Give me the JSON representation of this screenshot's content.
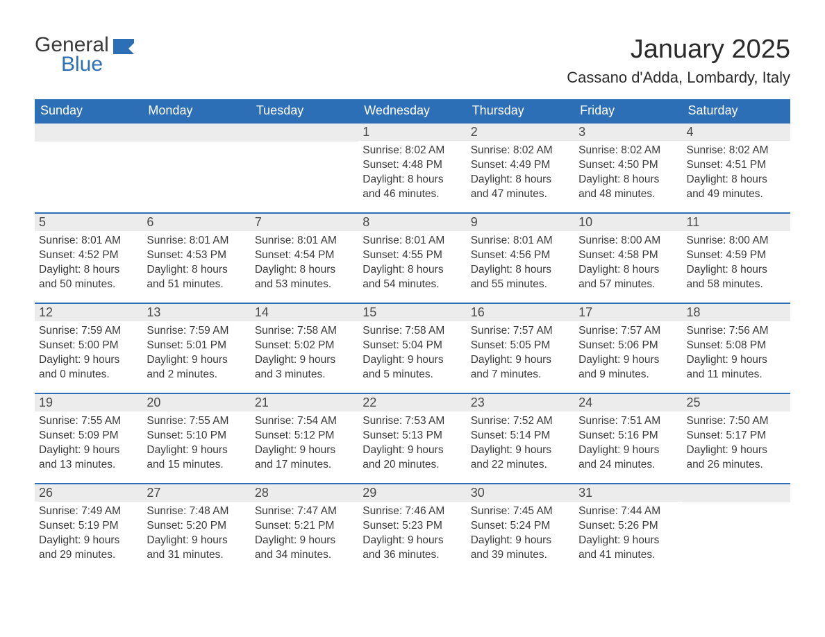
{
  "logo": {
    "word1": "General",
    "word2": "Blue",
    "color_dark": "#3a3a3a",
    "color_blue": "#2d6fb6"
  },
  "title": {
    "month": "January 2025",
    "location": "Cassano d'Adda, Lombardy, Italy"
  },
  "style": {
    "header_bg": "#2d6fb6",
    "header_fg": "#ffffff",
    "daynum_bg": "#ececec",
    "week_divider": "#2d6fb6",
    "text_color": "#3a3a3a",
    "page_bg": "#ffffff",
    "title_fontsize": 38,
    "location_fontsize": 22,
    "dow_fontsize": 18,
    "body_fontsize": 15.5
  },
  "days_of_week": [
    "Sunday",
    "Monday",
    "Tuesday",
    "Wednesday",
    "Thursday",
    "Friday",
    "Saturday"
  ],
  "weeks": [
    [
      null,
      null,
      null,
      {
        "n": "1",
        "sunrise": "Sunrise: 8:02 AM",
        "sunset": "Sunset: 4:48 PM",
        "dl1": "Daylight: 8 hours",
        "dl2": "and 46 minutes."
      },
      {
        "n": "2",
        "sunrise": "Sunrise: 8:02 AM",
        "sunset": "Sunset: 4:49 PM",
        "dl1": "Daylight: 8 hours",
        "dl2": "and 47 minutes."
      },
      {
        "n": "3",
        "sunrise": "Sunrise: 8:02 AM",
        "sunset": "Sunset: 4:50 PM",
        "dl1": "Daylight: 8 hours",
        "dl2": "and 48 minutes."
      },
      {
        "n": "4",
        "sunrise": "Sunrise: 8:02 AM",
        "sunset": "Sunset: 4:51 PM",
        "dl1": "Daylight: 8 hours",
        "dl2": "and 49 minutes."
      }
    ],
    [
      {
        "n": "5",
        "sunrise": "Sunrise: 8:01 AM",
        "sunset": "Sunset: 4:52 PM",
        "dl1": "Daylight: 8 hours",
        "dl2": "and 50 minutes."
      },
      {
        "n": "6",
        "sunrise": "Sunrise: 8:01 AM",
        "sunset": "Sunset: 4:53 PM",
        "dl1": "Daylight: 8 hours",
        "dl2": "and 51 minutes."
      },
      {
        "n": "7",
        "sunrise": "Sunrise: 8:01 AM",
        "sunset": "Sunset: 4:54 PM",
        "dl1": "Daylight: 8 hours",
        "dl2": "and 53 minutes."
      },
      {
        "n": "8",
        "sunrise": "Sunrise: 8:01 AM",
        "sunset": "Sunset: 4:55 PM",
        "dl1": "Daylight: 8 hours",
        "dl2": "and 54 minutes."
      },
      {
        "n": "9",
        "sunrise": "Sunrise: 8:01 AM",
        "sunset": "Sunset: 4:56 PM",
        "dl1": "Daylight: 8 hours",
        "dl2": "and 55 minutes."
      },
      {
        "n": "10",
        "sunrise": "Sunrise: 8:00 AM",
        "sunset": "Sunset: 4:58 PM",
        "dl1": "Daylight: 8 hours",
        "dl2": "and 57 minutes."
      },
      {
        "n": "11",
        "sunrise": "Sunrise: 8:00 AM",
        "sunset": "Sunset: 4:59 PM",
        "dl1": "Daylight: 8 hours",
        "dl2": "and 58 minutes."
      }
    ],
    [
      {
        "n": "12",
        "sunrise": "Sunrise: 7:59 AM",
        "sunset": "Sunset: 5:00 PM",
        "dl1": "Daylight: 9 hours",
        "dl2": "and 0 minutes."
      },
      {
        "n": "13",
        "sunrise": "Sunrise: 7:59 AM",
        "sunset": "Sunset: 5:01 PM",
        "dl1": "Daylight: 9 hours",
        "dl2": "and 2 minutes."
      },
      {
        "n": "14",
        "sunrise": "Sunrise: 7:58 AM",
        "sunset": "Sunset: 5:02 PM",
        "dl1": "Daylight: 9 hours",
        "dl2": "and 3 minutes."
      },
      {
        "n": "15",
        "sunrise": "Sunrise: 7:58 AM",
        "sunset": "Sunset: 5:04 PM",
        "dl1": "Daylight: 9 hours",
        "dl2": "and 5 minutes."
      },
      {
        "n": "16",
        "sunrise": "Sunrise: 7:57 AM",
        "sunset": "Sunset: 5:05 PM",
        "dl1": "Daylight: 9 hours",
        "dl2": "and 7 minutes."
      },
      {
        "n": "17",
        "sunrise": "Sunrise: 7:57 AM",
        "sunset": "Sunset: 5:06 PM",
        "dl1": "Daylight: 9 hours",
        "dl2": "and 9 minutes."
      },
      {
        "n": "18",
        "sunrise": "Sunrise: 7:56 AM",
        "sunset": "Sunset: 5:08 PM",
        "dl1": "Daylight: 9 hours",
        "dl2": "and 11 minutes."
      }
    ],
    [
      {
        "n": "19",
        "sunrise": "Sunrise: 7:55 AM",
        "sunset": "Sunset: 5:09 PM",
        "dl1": "Daylight: 9 hours",
        "dl2": "and 13 minutes."
      },
      {
        "n": "20",
        "sunrise": "Sunrise: 7:55 AM",
        "sunset": "Sunset: 5:10 PM",
        "dl1": "Daylight: 9 hours",
        "dl2": "and 15 minutes."
      },
      {
        "n": "21",
        "sunrise": "Sunrise: 7:54 AM",
        "sunset": "Sunset: 5:12 PM",
        "dl1": "Daylight: 9 hours",
        "dl2": "and 17 minutes."
      },
      {
        "n": "22",
        "sunrise": "Sunrise: 7:53 AM",
        "sunset": "Sunset: 5:13 PM",
        "dl1": "Daylight: 9 hours",
        "dl2": "and 20 minutes."
      },
      {
        "n": "23",
        "sunrise": "Sunrise: 7:52 AM",
        "sunset": "Sunset: 5:14 PM",
        "dl1": "Daylight: 9 hours",
        "dl2": "and 22 minutes."
      },
      {
        "n": "24",
        "sunrise": "Sunrise: 7:51 AM",
        "sunset": "Sunset: 5:16 PM",
        "dl1": "Daylight: 9 hours",
        "dl2": "and 24 minutes."
      },
      {
        "n": "25",
        "sunrise": "Sunrise: 7:50 AM",
        "sunset": "Sunset: 5:17 PM",
        "dl1": "Daylight: 9 hours",
        "dl2": "and 26 minutes."
      }
    ],
    [
      {
        "n": "26",
        "sunrise": "Sunrise: 7:49 AM",
        "sunset": "Sunset: 5:19 PM",
        "dl1": "Daylight: 9 hours",
        "dl2": "and 29 minutes."
      },
      {
        "n": "27",
        "sunrise": "Sunrise: 7:48 AM",
        "sunset": "Sunset: 5:20 PM",
        "dl1": "Daylight: 9 hours",
        "dl2": "and 31 minutes."
      },
      {
        "n": "28",
        "sunrise": "Sunrise: 7:47 AM",
        "sunset": "Sunset: 5:21 PM",
        "dl1": "Daylight: 9 hours",
        "dl2": "and 34 minutes."
      },
      {
        "n": "29",
        "sunrise": "Sunrise: 7:46 AM",
        "sunset": "Sunset: 5:23 PM",
        "dl1": "Daylight: 9 hours",
        "dl2": "and 36 minutes."
      },
      {
        "n": "30",
        "sunrise": "Sunrise: 7:45 AM",
        "sunset": "Sunset: 5:24 PM",
        "dl1": "Daylight: 9 hours",
        "dl2": "and 39 minutes."
      },
      {
        "n": "31",
        "sunrise": "Sunrise: 7:44 AM",
        "sunset": "Sunset: 5:26 PM",
        "dl1": "Daylight: 9 hours",
        "dl2": "and 41 minutes."
      },
      null
    ]
  ]
}
